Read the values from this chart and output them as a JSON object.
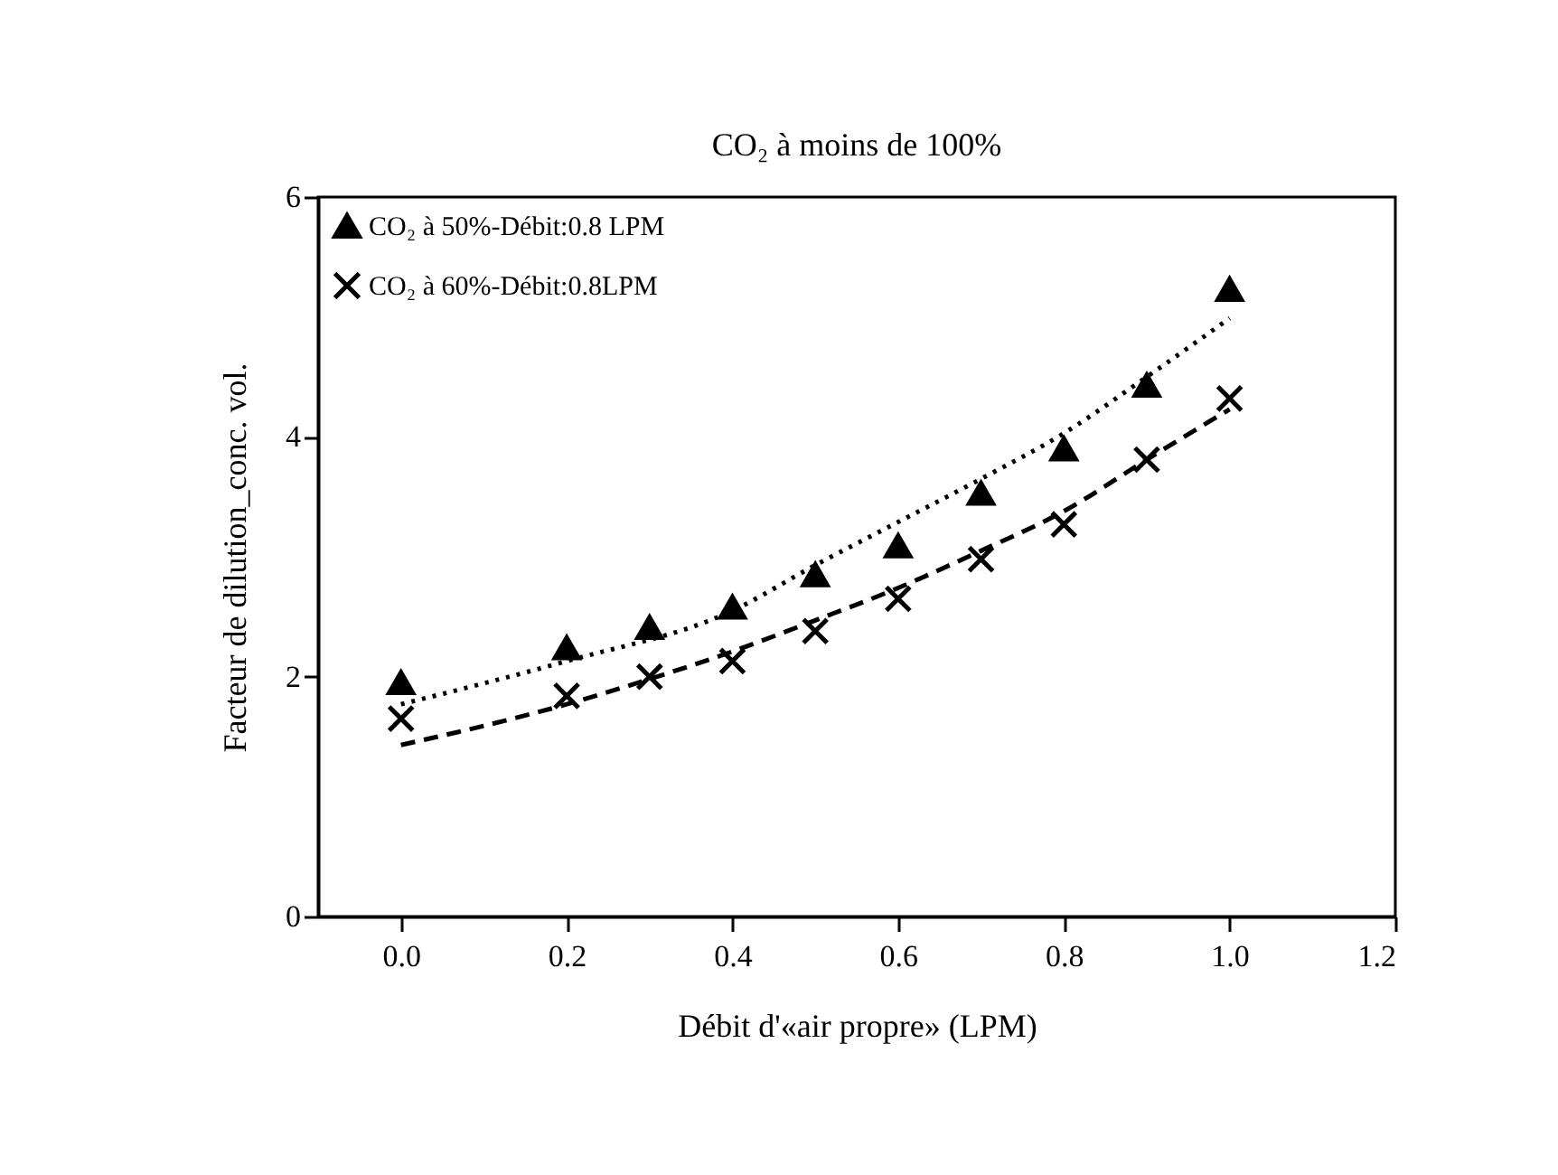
{
  "chart_data": {
    "type": "scatter",
    "title": "CO₂ à moins de 100%",
    "xlabel": "Débit d'«air propre» (LPM)",
    "ylabel": "Facteur de dilution_conc. vol.",
    "xlim": [
      -0.1,
      1.2
    ],
    "xticks": [
      {
        "value": 0,
        "label": "0.0"
      },
      {
        "value": 0.2,
        "label": "0.2"
      },
      {
        "value": 0.4,
        "label": "0.4"
      },
      {
        "value": 0.6,
        "label": "0.6"
      },
      {
        "value": 0.8,
        "label": "0.8"
      },
      {
        "value": 1,
        "label": "1.0"
      },
      {
        "value": 1.2,
        "label": "1.2"
      }
    ],
    "ylim": [
      0,
      6
    ],
    "yticks": [
      0,
      2,
      4,
      6
    ],
    "grid": false,
    "legend": "top left",
    "series": [
      {
        "name": "CO₂ à 50%-Débit:0.8 LPM",
        "marker": "triangle",
        "color": "#000000",
        "x": [
          0,
          0.2,
          0.3,
          0.4,
          0.5,
          0.6,
          0.7,
          0.8,
          0.9,
          1.0
        ],
        "values": [
          1.95,
          2.24,
          2.41,
          2.58,
          2.85,
          3.09,
          3.53,
          3.9,
          4.43,
          5.23
        ]
      },
      {
        "name": "CO₂ à 60%-Débit:0.8LPM",
        "marker": "cross",
        "color": "#000000",
        "x": [
          0,
          0.2,
          0.3,
          0.4,
          0.5,
          0.6,
          0.7,
          0.8,
          0.9,
          1.0
        ],
        "values": [
          1.65,
          1.84,
          2.0,
          2.13,
          2.38,
          2.65,
          2.98,
          3.27,
          3.81,
          4.32
        ]
      },
      {
        "type": "line",
        "line_style": "dotted",
        "color": "#000000",
        "x": [
          0,
          0.2,
          0.4,
          0.5,
          0.6,
          0.7,
          0.8,
          0.9,
          1.0
        ],
        "values": [
          1.77,
          2.13,
          2.55,
          2.93,
          3.29,
          3.65,
          4.03,
          4.5,
          4.99
        ]
      },
      {
        "type": "line",
        "line_style": "dashed",
        "color": "#000000",
        "x": [
          0,
          0.2,
          0.3,
          0.4,
          0.5,
          0.6,
          0.7,
          0.8,
          0.9,
          1.0
        ],
        "values": [
          1.43,
          1.77,
          1.98,
          2.21,
          2.47,
          2.74,
          3.05,
          3.38,
          3.81,
          4.23
        ]
      }
    ]
  }
}
